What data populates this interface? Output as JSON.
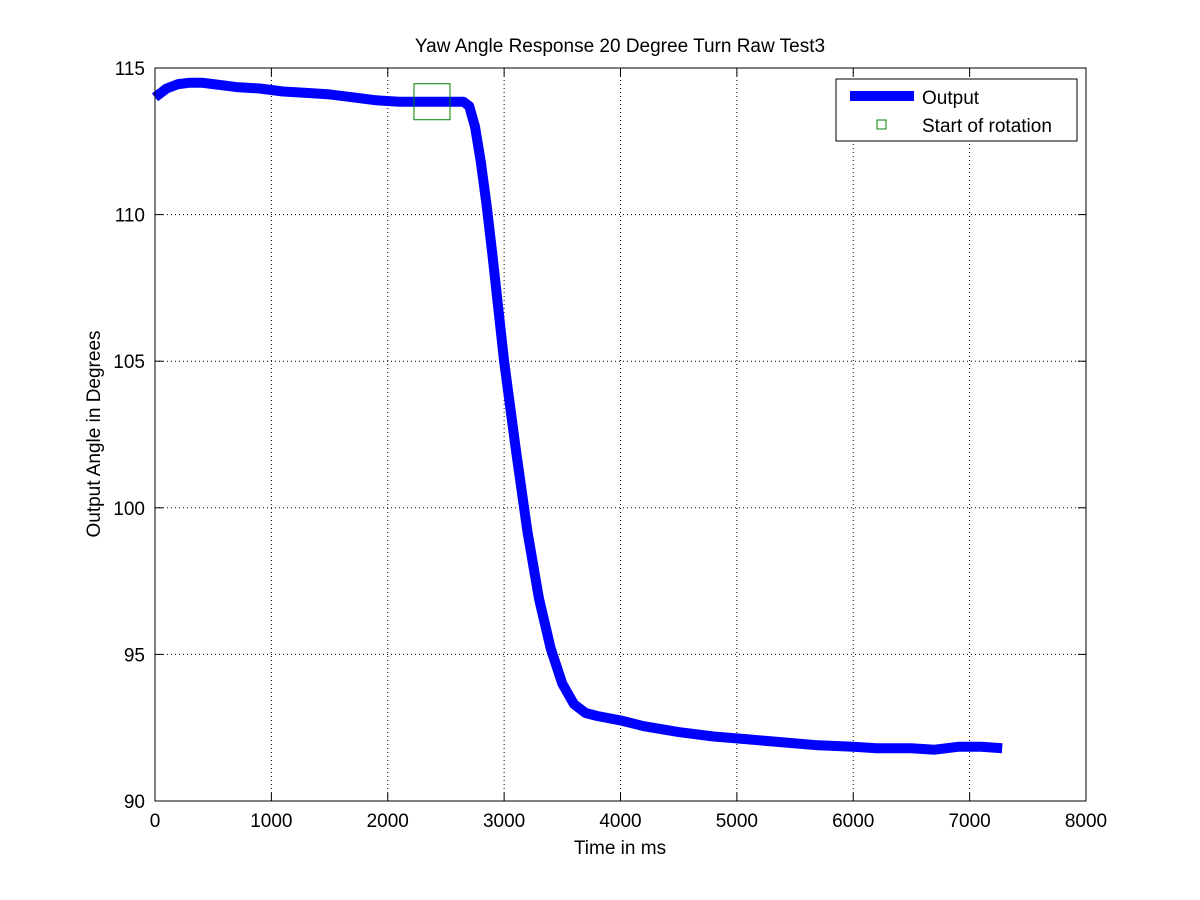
{
  "chart_data": {
    "type": "line",
    "title": "Yaw Angle Response 20 Degree Turn Raw Test3",
    "xlabel": "Time in ms",
    "ylabel": "Output Angle in Degrees",
    "xlim": [
      0,
      8000
    ],
    "ylim": [
      90,
      115
    ],
    "xticks": [
      "0",
      "1000",
      "2000",
      "3000",
      "4000",
      "5000",
      "6000",
      "7000",
      "8000"
    ],
    "yticks": [
      "90",
      "95",
      "100",
      "105",
      "110",
      "115"
    ],
    "grid": true,
    "legend_position": "top-right",
    "colors": {
      "output": "#0000ff",
      "marker": "#008000"
    },
    "series": [
      {
        "name": "Output",
        "style": "thick-line",
        "x": [
          0,
          100,
          200,
          300,
          400,
          500,
          700,
          900,
          1100,
          1300,
          1500,
          1700,
          1900,
          2100,
          2300,
          2500,
          2600,
          2650,
          2700,
          2750,
          2800,
          2850,
          2900,
          2950,
          3000,
          3100,
          3200,
          3300,
          3400,
          3500,
          3600,
          3700,
          3800,
          4000,
          4200,
          4500,
          4800,
          5100,
          5400,
          5700,
          6000,
          6200,
          6500,
          6700,
          6900,
          7100,
          7280
        ],
        "y": [
          114.0,
          114.3,
          114.45,
          114.5,
          114.5,
          114.45,
          114.35,
          114.3,
          114.2,
          114.15,
          114.1,
          114.0,
          113.9,
          113.85,
          113.85,
          113.85,
          113.85,
          113.85,
          113.7,
          113.0,
          111.8,
          110.3,
          108.6,
          106.8,
          105.0,
          102.0,
          99.2,
          96.9,
          95.2,
          94.0,
          93.3,
          93.0,
          92.9,
          92.75,
          92.55,
          92.35,
          92.2,
          92.1,
          92.0,
          91.9,
          91.85,
          91.8,
          91.8,
          91.75,
          91.85,
          91.85,
          91.8
        ]
      },
      {
        "name": "Start of rotation",
        "style": "square-marker",
        "x": [
          2380
        ],
        "y": [
          113.85
        ]
      }
    ]
  }
}
